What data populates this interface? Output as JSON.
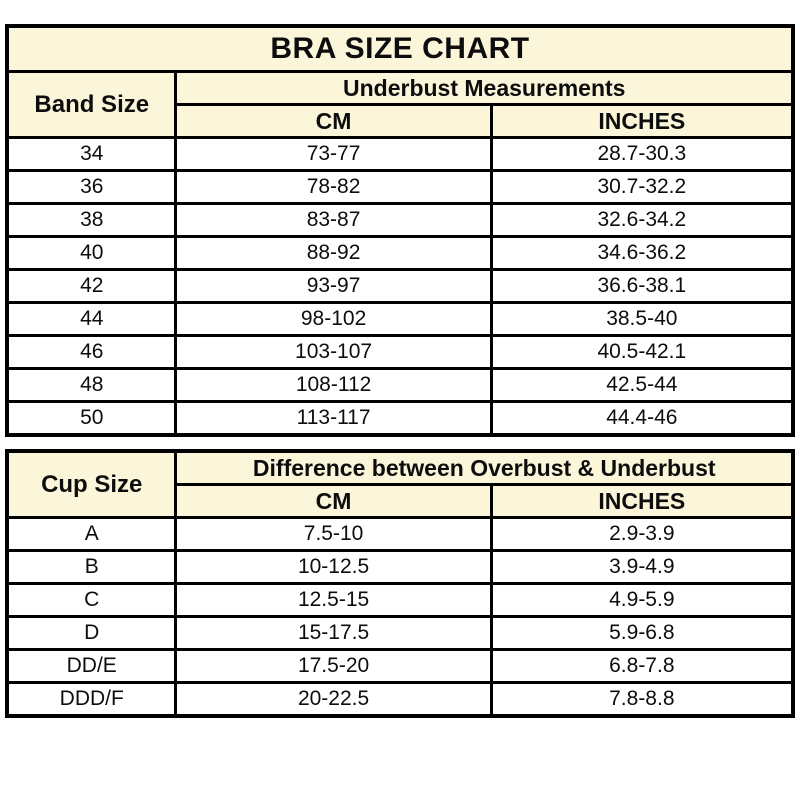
{
  "title": "BRA SIZE CHART",
  "colors": {
    "header_bg": "#FBF6DA",
    "row_bg": "#FFFFFF",
    "border": "#000000",
    "text": "#0D0D0D"
  },
  "band_table": {
    "corner_header": "Band Size",
    "group_header": "Underbust Measurements",
    "col_headers": [
      "CM",
      "INCHES"
    ],
    "rows": [
      {
        "size": "34",
        "cm": "73-77",
        "inches": "28.7-30.3"
      },
      {
        "size": "36",
        "cm": "78-82",
        "inches": "30.7-32.2"
      },
      {
        "size": "38",
        "cm": "83-87",
        "inches": "32.6-34.2"
      },
      {
        "size": "40",
        "cm": "88-92",
        "inches": "34.6-36.2"
      },
      {
        "size": "42",
        "cm": "93-97",
        "inches": "36.6-38.1"
      },
      {
        "size": "44",
        "cm": "98-102",
        "inches": "38.5-40"
      },
      {
        "size": "46",
        "cm": "103-107",
        "inches": "40.5-42.1"
      },
      {
        "size": "48",
        "cm": "108-112",
        "inches": "42.5-44"
      },
      {
        "size": "50",
        "cm": "113-117",
        "inches": "44.4-46"
      }
    ]
  },
  "cup_table": {
    "corner_header": "Cup Size",
    "group_header": "Difference between Overbust & Underbust",
    "col_headers": [
      "CM",
      "INCHES"
    ],
    "rows": [
      {
        "size": "A",
        "cm": "7.5-10",
        "inches": "2.9-3.9"
      },
      {
        "size": "B",
        "cm": "10-12.5",
        "inches": "3.9-4.9"
      },
      {
        "size": "C",
        "cm": "12.5-15",
        "inches": "4.9-5.9"
      },
      {
        "size": "D",
        "cm": "15-17.5",
        "inches": "5.9-6.8"
      },
      {
        "size": "DD/E",
        "cm": "17.5-20",
        "inches": "6.8-7.8"
      },
      {
        "size": "DDD/F",
        "cm": "20-22.5",
        "inches": "7.8-8.8"
      }
    ]
  }
}
